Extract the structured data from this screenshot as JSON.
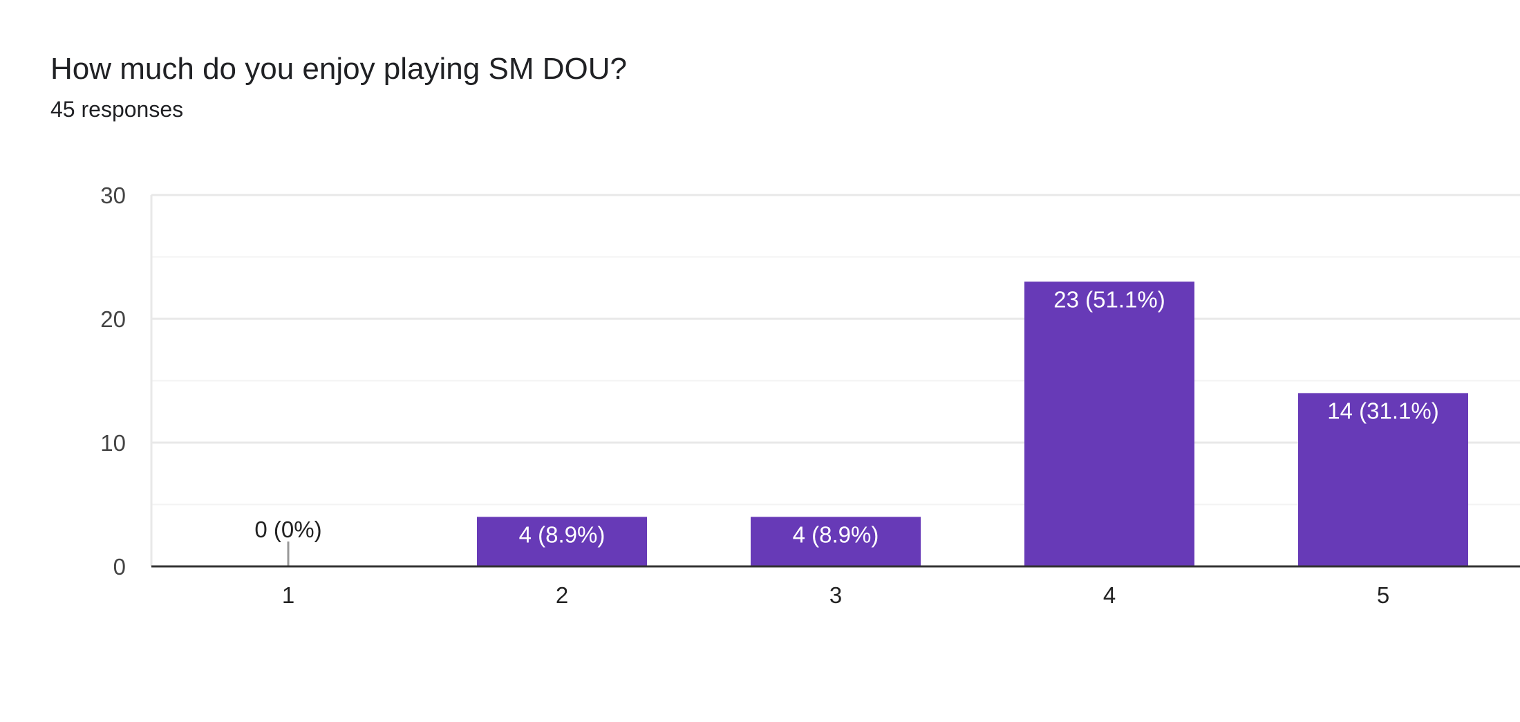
{
  "header": {
    "title": "How much do you enjoy playing SM DOU?",
    "subtitle": "45 responses"
  },
  "colors": {
    "bar": "#673ab7",
    "grid_major": "#e8e8e8",
    "grid_minor": "#f3f3f3",
    "axis": "#333333"
  },
  "chart_data": {
    "type": "bar",
    "categories": [
      "1",
      "2",
      "3",
      "4",
      "5"
    ],
    "values": [
      0,
      4,
      4,
      23,
      14
    ],
    "data_labels": [
      "0 (0%)",
      "4 (8.9%)",
      "4 (8.9%)",
      "23 (51.1%)",
      "14 (31.1%)"
    ],
    "ylim": [
      0,
      30
    ],
    "yticks": [
      0,
      10,
      20,
      30
    ],
    "grid": true
  }
}
